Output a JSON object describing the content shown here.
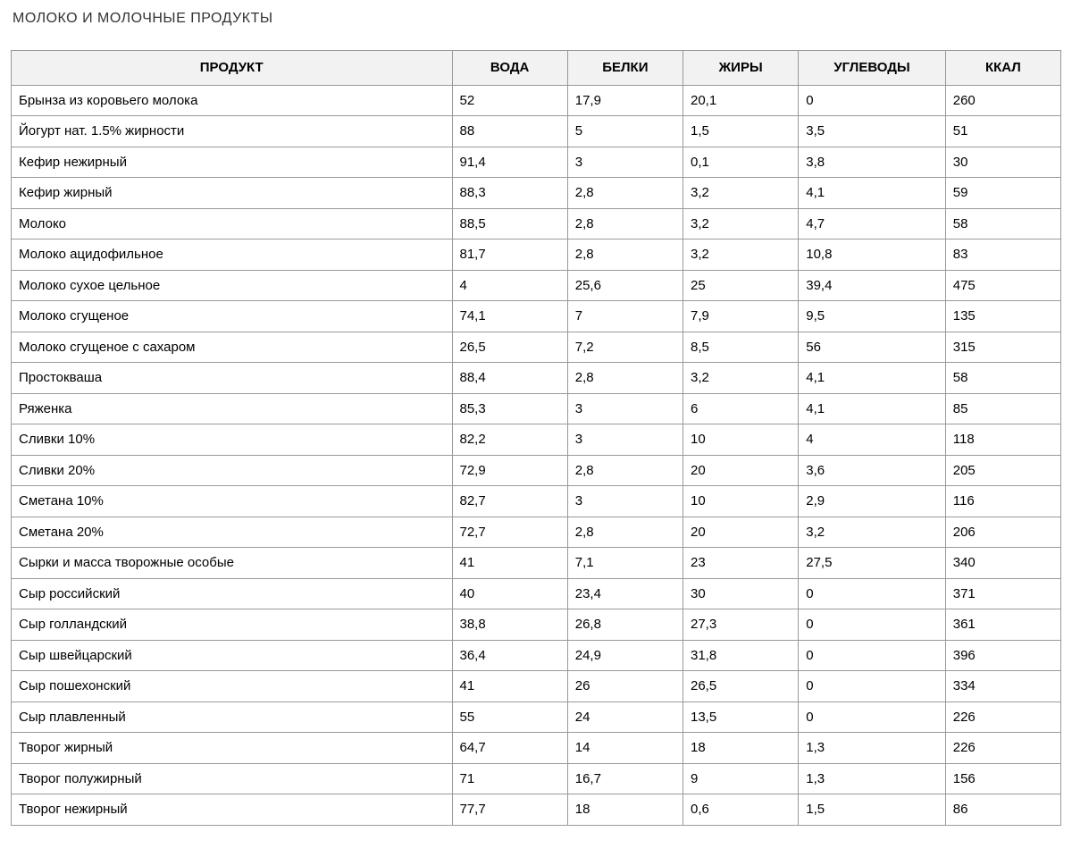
{
  "title": "МОЛОКО И МОЛОЧНЫЕ ПРОДУКТЫ",
  "table": {
    "columns": [
      "ПРОДУКТ",
      "ВОДА",
      "БЕЛКИ",
      "ЖИРЫ",
      "УГЛЕВОДЫ",
      "ККАЛ"
    ],
    "col_classes": [
      "col-product",
      "col-water",
      "col-protein",
      "col-fat",
      "col-carbs",
      "col-kcal"
    ],
    "header_bg": "#f2f2f2",
    "border_color": "#999999",
    "font_size": 15,
    "rows": [
      [
        "Брынза из коровьего молока",
        "52",
        "17,9",
        "20,1",
        "0",
        "260"
      ],
      [
        "Йогурт нат. 1.5% жирности",
        "88",
        "5",
        "1,5",
        "3,5",
        "51"
      ],
      [
        "Кефир нежирный",
        "91,4",
        "3",
        "0,1",
        "3,8",
        "30"
      ],
      [
        "Кефир жирный",
        "88,3",
        "2,8",
        "3,2",
        "4,1",
        "59"
      ],
      [
        "Молоко",
        "88,5",
        "2,8",
        "3,2",
        "4,7",
        "58"
      ],
      [
        "Молоко ацидофильное",
        "81,7",
        "2,8",
        "3,2",
        "10,8",
        "83"
      ],
      [
        "Молоко сухое цельное",
        "4",
        "25,6",
        "25",
        "39,4",
        "475"
      ],
      [
        "Молоко сгущеное",
        "74,1",
        "7",
        "7,9",
        "9,5",
        "135"
      ],
      [
        "Молоко сгущеное с сахаром",
        "26,5",
        "7,2",
        "8,5",
        "56",
        "315"
      ],
      [
        "Простокваша",
        "88,4",
        "2,8",
        "3,2",
        "4,1",
        "58"
      ],
      [
        "Ряженка",
        "85,3",
        "3",
        "6",
        "4,1",
        "85"
      ],
      [
        "Сливки 10%",
        "82,2",
        "3",
        "10",
        "4",
        "118"
      ],
      [
        "Сливки 20%",
        "72,9",
        "2,8",
        "20",
        "3,6",
        "205"
      ],
      [
        "Сметана 10%",
        "82,7",
        "3",
        "10",
        "2,9",
        "116"
      ],
      [
        "Сметана 20%",
        "72,7",
        "2,8",
        "20",
        "3,2",
        "206"
      ],
      [
        "Сырки и масса творожные особые",
        "41",
        "7,1",
        "23",
        "27,5",
        "340"
      ],
      [
        "Сыр российский",
        "40",
        "23,4",
        "30",
        "0",
        "371"
      ],
      [
        "Сыр голландский",
        "38,8",
        "26,8",
        "27,3",
        "0",
        "361"
      ],
      [
        "Сыр швейцарский",
        "36,4",
        "24,9",
        "31,8",
        "0",
        "396"
      ],
      [
        "Сыр пошехонский",
        "41",
        "26",
        "26,5",
        "0",
        "334"
      ],
      [
        "Сыр плавленный",
        "55",
        "24",
        "13,5",
        "0",
        "226"
      ],
      [
        "Творог жирный",
        "64,7",
        "14",
        "18",
        "1,3",
        "226"
      ],
      [
        "Творог полужирный",
        "71",
        "16,7",
        "9",
        "1,3",
        "156"
      ],
      [
        "Творог нежирный",
        "77,7",
        "18",
        "0,6",
        "1,5",
        "86"
      ]
    ]
  }
}
